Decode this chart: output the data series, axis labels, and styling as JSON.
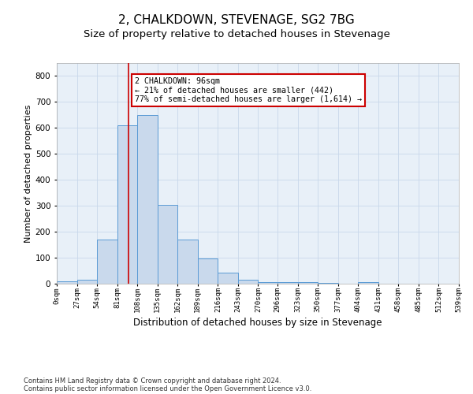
{
  "title": "2, CHALKDOWN, STEVENAGE, SG2 7BG",
  "subtitle": "Size of property relative to detached houses in Stevenage",
  "xlabel": "Distribution of detached houses by size in Stevenage",
  "ylabel": "Number of detached properties",
  "bar_edges": [
    0,
    27,
    54,
    81,
    108,
    135,
    162,
    189,
    216,
    243,
    270,
    296,
    323,
    350,
    377,
    404,
    431,
    458,
    485,
    512,
    539
  ],
  "bar_heights": [
    8,
    15,
    170,
    610,
    650,
    305,
    170,
    97,
    42,
    15,
    5,
    5,
    5,
    3,
    0,
    5,
    0,
    0,
    0,
    0
  ],
  "bar_color": "#c9d9ec",
  "bar_edgecolor": "#5b9bd5",
  "property_size": 96,
  "property_line_color": "#cc0000",
  "ylim": [
    0,
    850
  ],
  "xlim": [
    0,
    539
  ],
  "yticks": [
    0,
    100,
    200,
    300,
    400,
    500,
    600,
    700,
    800
  ],
  "annotation_text": "2 CHALKDOWN: 96sqm\n← 21% of detached houses are smaller (442)\n77% of semi-detached houses are larger (1,614) →",
  "annotation_box_color": "#ffffff",
  "annotation_box_edgecolor": "#cc0000",
  "footer_line1": "Contains HM Land Registry data © Crown copyright and database right 2024.",
  "footer_line2": "Contains public sector information licensed under the Open Government Licence v3.0.",
  "title_fontsize": 11,
  "subtitle_fontsize": 9.5,
  "xlabel_fontsize": 8.5,
  "ylabel_fontsize": 8,
  "tick_labels": [
    "0sqm",
    "27sqm",
    "54sqm",
    "81sqm",
    "108sqm",
    "135sqm",
    "162sqm",
    "189sqm",
    "216sqm",
    "243sqm",
    "270sqm",
    "296sqm",
    "323sqm",
    "350sqm",
    "377sqm",
    "404sqm",
    "431sqm",
    "458sqm",
    "485sqm",
    "512sqm",
    "539sqm"
  ],
  "grid_color": "#c8d8ea",
  "bg_color": "#e8f0f8"
}
